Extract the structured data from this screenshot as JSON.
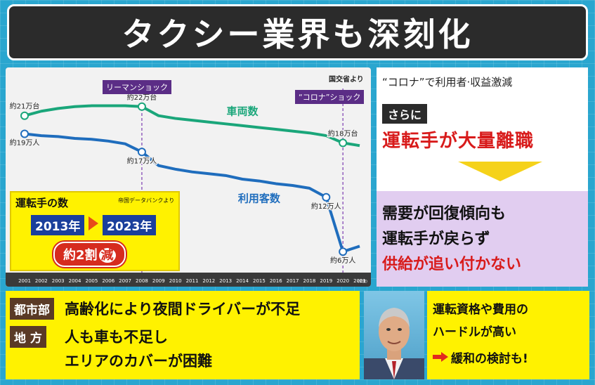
{
  "title": "タクシー業界も深刻化",
  "source_note": "国交省より",
  "events": {
    "lehman": "リーマンショック",
    "corona": "“コロナ”ショック"
  },
  "chart_data": {
    "type": "line",
    "x_unit": "(年度)",
    "x": [
      2001,
      2002,
      2003,
      2004,
      2005,
      2006,
      2007,
      2008,
      2009,
      2010,
      2011,
      2012,
      2013,
      2014,
      2015,
      2016,
      2017,
      2018,
      2019,
      2020,
      2021
    ],
    "series": [
      {
        "name": "車両数",
        "color": "#1aa67a",
        "values": [
          21.0,
          21.5,
          21.8,
          22.0,
          22.1,
          22.1,
          22.1,
          22.0,
          21.0,
          20.7,
          20.5,
          20.3,
          20.1,
          19.9,
          19.7,
          19.5,
          19.3,
          19.1,
          18.8,
          18.0,
          17.7
        ]
      },
      {
        "name": "利用客数",
        "color": "#1f6dbd",
        "values": [
          19.0,
          18.8,
          18.7,
          18.5,
          18.4,
          18.2,
          17.9,
          17.0,
          15.5,
          15.1,
          14.8,
          14.6,
          14.4,
          14.0,
          13.8,
          13.5,
          13.3,
          13.0,
          12.0,
          6.0,
          6.6
        ]
      }
    ],
    "data_labels": [
      {
        "text": "約21万台",
        "series": 0,
        "x": 2001
      },
      {
        "text": "約22万台",
        "series": 0,
        "x": 2008
      },
      {
        "text": "約18万台",
        "series": 0,
        "x": 2020
      },
      {
        "text": "約19万人",
        "series": 1,
        "x": 2001
      },
      {
        "text": "約17万人",
        "series": 1,
        "x": 2008
      },
      {
        "text": "約12万人",
        "series": 1,
        "x": 2019
      },
      {
        "text": "約6万人",
        "series": 1,
        "x": 2020
      }
    ],
    "event_years": [
      2008,
      2020
    ]
  },
  "driver_box": {
    "title": "運転手の数",
    "source": "帝国データバンクより",
    "from_year": "2013年",
    "to_year": "2023年",
    "reduction_prefix": "約2割",
    "reduction_suffix": "減"
  },
  "right_panel": {
    "corona_line": "“コロナ”で利用者·収益激減",
    "moreover": "さらに",
    "mass_leave": "運転手が大量離職",
    "lines": [
      "需要が回復傾向も",
      "運転手が戻らず",
      "供給が追い付かない"
    ]
  },
  "regions": {
    "urban_tag": "都市部",
    "urban_text": "高齢化により夜間ドライバーが不足",
    "rural_tag": "地 方",
    "rural_text1": "人も車も不足し",
    "rural_text2": "エリアのカバーが困難"
  },
  "bottom_right": {
    "line1": "運転資格や費用の",
    "line2": "ハードルが高い",
    "line3": "緩和の検討も!"
  }
}
